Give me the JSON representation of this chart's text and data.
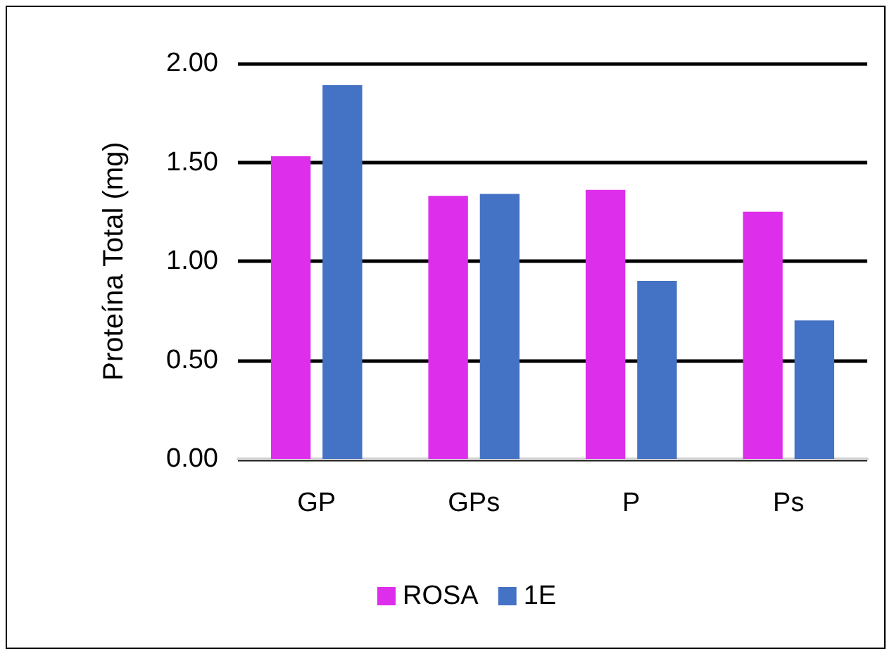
{
  "chart_data": {
    "type": "bar",
    "ylabel": "Proteína Total (mg)",
    "categories": [
      "GP",
      "GPs",
      "P",
      "Ps"
    ],
    "series": [
      {
        "name": "ROSA",
        "color": "#dd2eec",
        "values": [
          1.53,
          1.33,
          1.36,
          1.25
        ]
      },
      {
        "name": "1E",
        "color": "#4472c4",
        "values": [
          1.89,
          1.34,
          0.9,
          0.7
        ]
      }
    ],
    "ylim": [
      0,
      2
    ],
    "yticks": [
      {
        "value": 0,
        "label": "0.00"
      },
      {
        "value": 0.5,
        "label": "0.50"
      },
      {
        "value": 1,
        "label": "1.00"
      },
      {
        "value": 1.5,
        "label": "1.50"
      },
      {
        "value": 2,
        "label": "2.00"
      }
    ],
    "grid": "y",
    "legend": "bottom"
  }
}
